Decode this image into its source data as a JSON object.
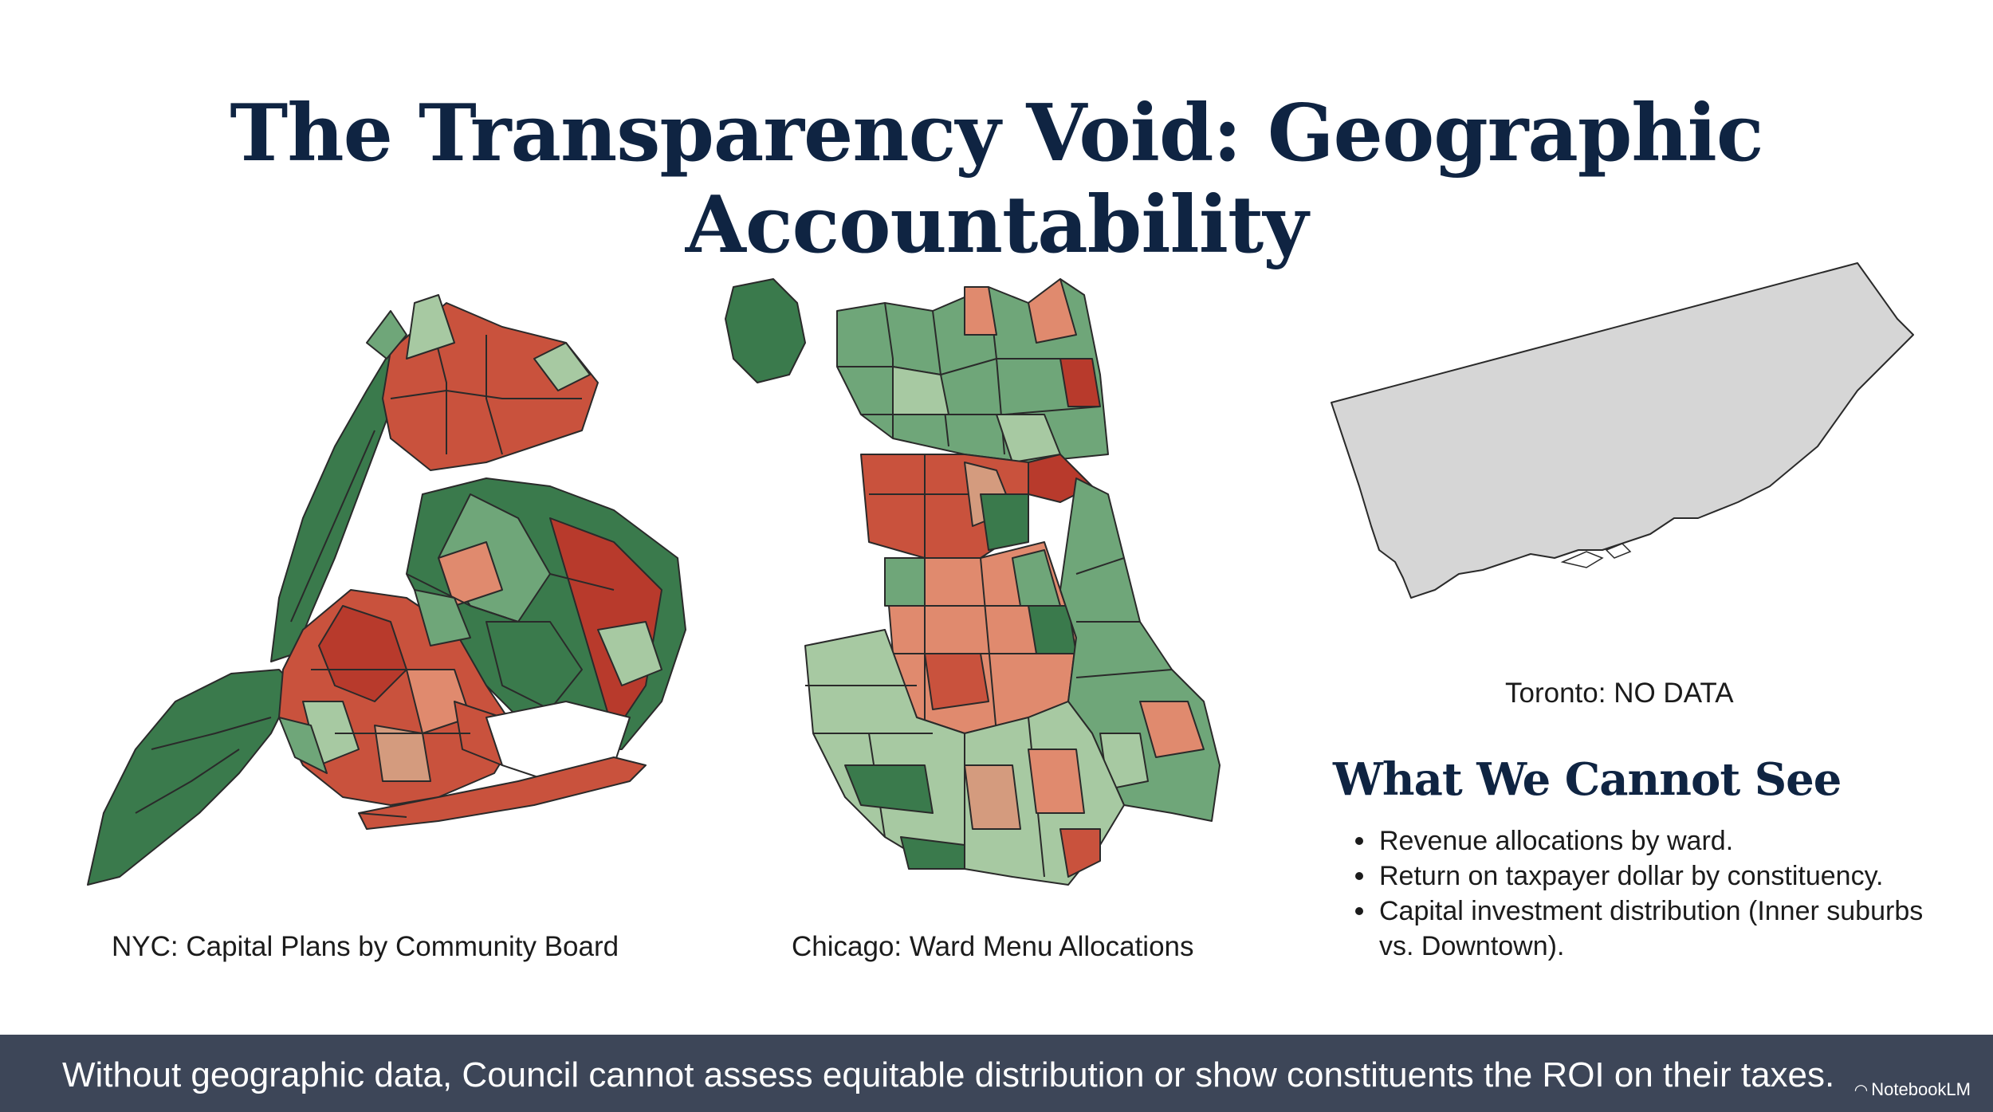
{
  "title": "The Transparency Void: Geographic Accountability",
  "maps": {
    "nyc": {
      "caption": "NYC: Capital Plans by Community Board"
    },
    "chicago": {
      "caption": "Chicago: Ward Menu Allocations"
    },
    "toronto": {
      "caption": "Toronto: NO DATA"
    }
  },
  "legend_colors": {
    "dark_green": "#3a7a4c",
    "mid_green": "#6fa679",
    "light_green": "#a7c9a2",
    "tan": "#d49b7e",
    "light_red": "#e08a6e",
    "red": "#c9523d",
    "dark_red": "#b83a2c",
    "no_data": "#d6d6d6"
  },
  "section": {
    "heading": "What We Cannot See",
    "bullets": [
      "Revenue allocations by ward.",
      "Return on taxpayer dollar by constituency.",
      "Capital investment distribution (Inner suburbs vs. Downtown)."
    ]
  },
  "footer": {
    "text": "Without geographic data, Council cannot assess equitable distribution or show constituents the ROI on their taxes.",
    "badge": "NotebookLM",
    "badge_icon": "notebooklm-logo-icon"
  }
}
